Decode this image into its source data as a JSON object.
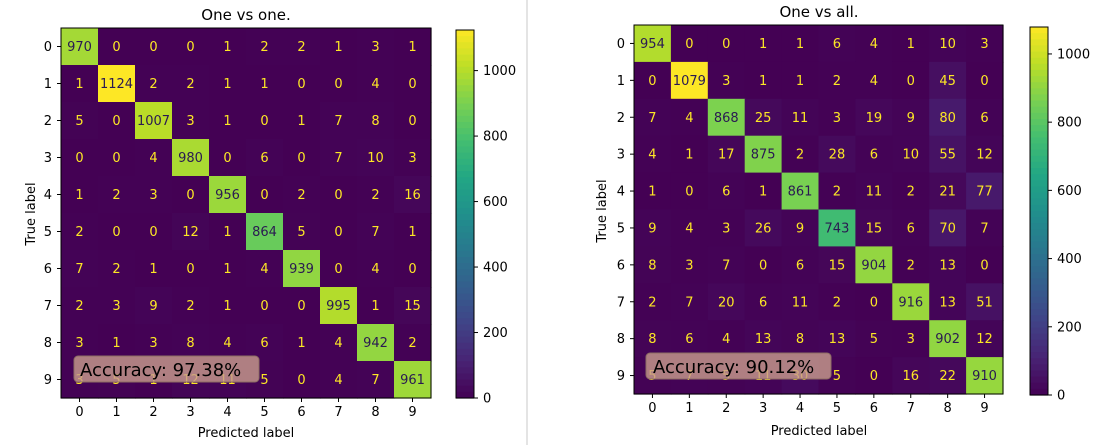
{
  "chart_data": [
    {
      "type": "heatmap",
      "title": "One vs one.",
      "xlabel": "Predicted label",
      "ylabel": "True label",
      "x_categories": [
        "0",
        "1",
        "2",
        "3",
        "4",
        "5",
        "6",
        "7",
        "8",
        "9"
      ],
      "y_categories": [
        "0",
        "1",
        "2",
        "3",
        "4",
        "5",
        "6",
        "7",
        "8",
        "9"
      ],
      "matrix": [
        [
          970,
          0,
          0,
          0,
          1,
          2,
          2,
          1,
          3,
          1
        ],
        [
          1,
          1124,
          2,
          2,
          1,
          1,
          0,
          0,
          4,
          0
        ],
        [
          5,
          0,
          1007,
          3,
          1,
          0,
          1,
          7,
          8,
          0
        ],
        [
          0,
          0,
          4,
          980,
          0,
          6,
          0,
          7,
          10,
          3
        ],
        [
          1,
          2,
          3,
          0,
          956,
          0,
          2,
          0,
          2,
          16
        ],
        [
          2,
          0,
          0,
          12,
          1,
          864,
          5,
          0,
          7,
          1
        ],
        [
          7,
          2,
          1,
          0,
          1,
          4,
          939,
          0,
          4,
          0
        ],
        [
          2,
          3,
          9,
          2,
          1,
          0,
          0,
          995,
          1,
          15
        ],
        [
          3,
          1,
          3,
          8,
          4,
          6,
          1,
          4,
          942,
          2
        ],
        [
          3,
          5,
          1,
          12,
          11,
          5,
          0,
          4,
          7,
          961
        ]
      ],
      "colorbar_ticks": [
        0,
        200,
        400,
        600,
        800,
        1000
      ],
      "color_range": [
        0,
        1124
      ],
      "colormap": "viridis",
      "annotation": "Accuracy: 97.38%"
    },
    {
      "type": "heatmap",
      "title": "One vs all.",
      "xlabel": "Predicted label",
      "ylabel": "True label",
      "x_categories": [
        "0",
        "1",
        "2",
        "3",
        "4",
        "5",
        "6",
        "7",
        "8",
        "9"
      ],
      "y_categories": [
        "0",
        "1",
        "2",
        "3",
        "4",
        "5",
        "6",
        "7",
        "8",
        "9"
      ],
      "matrix": [
        [
          954,
          0,
          0,
          1,
          1,
          6,
          4,
          1,
          10,
          3
        ],
        [
          0,
          1079,
          3,
          1,
          1,
          2,
          4,
          0,
          45,
          0
        ],
        [
          7,
          4,
          868,
          25,
          11,
          3,
          19,
          9,
          80,
          6
        ],
        [
          4,
          1,
          17,
          875,
          2,
          28,
          6,
          10,
          55,
          12
        ],
        [
          1,
          0,
          6,
          1,
          861,
          2,
          11,
          2,
          21,
          77
        ],
        [
          9,
          4,
          3,
          26,
          9,
          743,
          15,
          6,
          70,
          7
        ],
        [
          8,
          3,
          7,
          0,
          6,
          15,
          904,
          2,
          13,
          0
        ],
        [
          2,
          7,
          20,
          6,
          11,
          2,
          0,
          916,
          13,
          51
        ],
        [
          8,
          6,
          4,
          13,
          8,
          13,
          5,
          3,
          902,
          12
        ],
        [
          5,
          7,
          5,
          11,
          30,
          5,
          0,
          16,
          22,
          910
        ]
      ],
      "colorbar_ticks": [
        0,
        200,
        400,
        600,
        800,
        1000
      ],
      "color_range": [
        0,
        1079
      ],
      "colormap": "viridis",
      "annotation": "Accuracy: 90.12%"
    }
  ]
}
